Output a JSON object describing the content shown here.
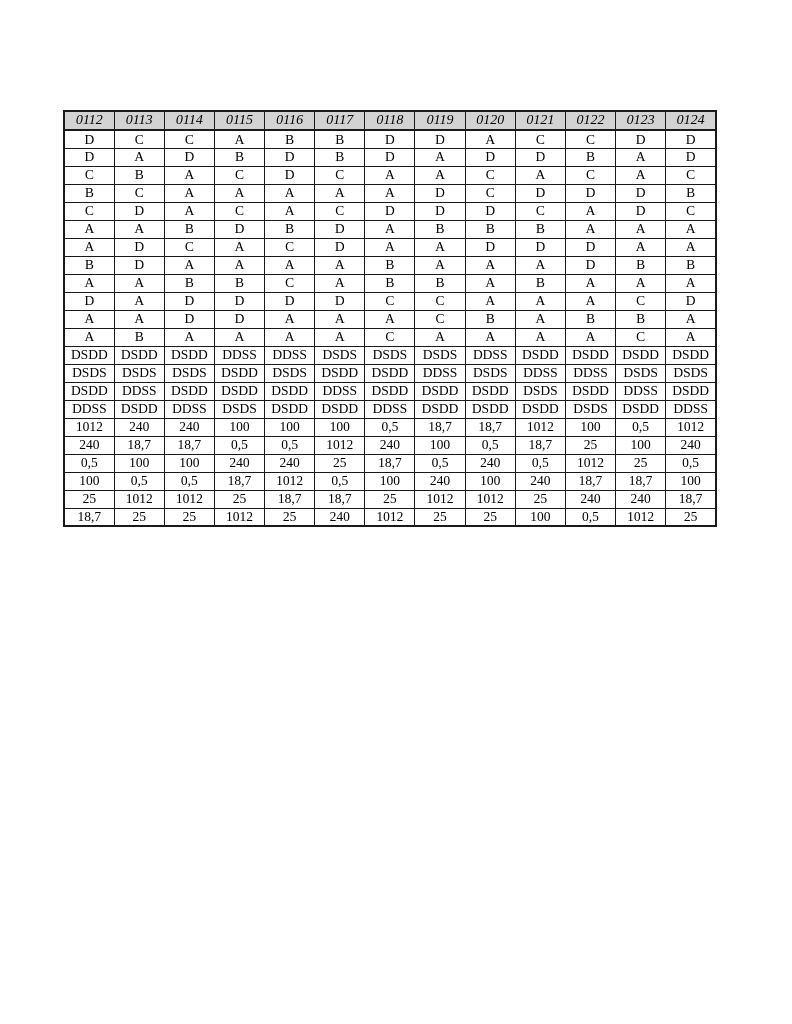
{
  "page": {
    "background": "#ffffff"
  },
  "table": {
    "border_color": "#1a1a1a",
    "header_bg": "#d3d3d3",
    "columns": [
      "0112",
      "0113",
      "0114",
      "0115",
      "0116",
      "0117",
      "0118",
      "0119",
      "0120",
      "0121",
      "0122",
      "0123",
      "0124"
    ],
    "rows": [
      [
        "D",
        "C",
        "C",
        "A",
        "B",
        "B",
        "D",
        "D",
        "A",
        "C",
        "C",
        "D",
        "D"
      ],
      [
        "D",
        "A",
        "D",
        "B",
        "D",
        "B",
        "D",
        "A",
        "D",
        "D",
        "B",
        "A",
        "D"
      ],
      [
        "C",
        "B",
        "A",
        "C",
        "D",
        "C",
        "A",
        "A",
        "C",
        "A",
        "C",
        "A",
        "C"
      ],
      [
        "B",
        "C",
        "A",
        "A",
        "A",
        "A",
        "A",
        "D",
        "C",
        "D",
        "D",
        "D",
        "B"
      ],
      [
        "C",
        "D",
        "A",
        "C",
        "A",
        "C",
        "D",
        "D",
        "D",
        "C",
        "A",
        "D",
        "C"
      ],
      [
        "A",
        "A",
        "B",
        "D",
        "B",
        "D",
        "A",
        "B",
        "B",
        "B",
        "A",
        "A",
        "A"
      ],
      [
        "A",
        "D",
        "C",
        "A",
        "C",
        "D",
        "A",
        "A",
        "D",
        "D",
        "D",
        "A",
        "A"
      ],
      [
        "B",
        "D",
        "A",
        "A",
        "A",
        "A",
        "B",
        "A",
        "A",
        "A",
        "D",
        "B",
        "B"
      ],
      [
        "A",
        "A",
        "B",
        "B",
        "C",
        "A",
        "B",
        "B",
        "A",
        "B",
        "A",
        "A",
        "A"
      ],
      [
        "D",
        "A",
        "D",
        "D",
        "D",
        "D",
        "C",
        "C",
        "A",
        "A",
        "A",
        "C",
        "D"
      ],
      [
        "A",
        "A",
        "D",
        "D",
        "A",
        "A",
        "A",
        "C",
        "B",
        "A",
        "B",
        "B",
        "A"
      ],
      [
        "A",
        "B",
        "A",
        "A",
        "A",
        "A",
        "C",
        "A",
        "A",
        "A",
        "A",
        "C",
        "A"
      ],
      [
        "DSDD",
        "DSDD",
        "DSDD",
        "DDSS",
        "DDSS",
        "DSDS",
        "DSDS",
        "DSDS",
        "DDSS",
        "DSDD",
        "DSDD",
        "DSDD",
        "DSDD"
      ],
      [
        "DSDS",
        "DSDS",
        "DSDS",
        "DSDD",
        "DSDS",
        "DSDD",
        "DSDD",
        "DDSS",
        "DSDS",
        "DDSS",
        "DDSS",
        "DSDS",
        "DSDS"
      ],
      [
        "DSDD",
        "DDSS",
        "DSDD",
        "DSDD",
        "DSDD",
        "DDSS",
        "DSDD",
        "DSDD",
        "DSDD",
        "DSDS",
        "DSDD",
        "DDSS",
        "DSDD"
      ],
      [
        "DDSS",
        "DSDD",
        "DDSS",
        "DSDS",
        "DSDD",
        "DSDD",
        "DDSS",
        "DSDD",
        "DSDD",
        "DSDD",
        "DSDS",
        "DSDD",
        "DDSS"
      ],
      [
        "1012",
        "240",
        "240",
        "100",
        "100",
        "100",
        "0,5",
        "18,7",
        "18,7",
        "1012",
        "100",
        "0,5",
        "1012"
      ],
      [
        "240",
        "18,7",
        "18,7",
        "0,5",
        "0,5",
        "1012",
        "240",
        "100",
        "0,5",
        "18,7",
        "25",
        "100",
        "240"
      ],
      [
        "0,5",
        "100",
        "100",
        "240",
        "240",
        "25",
        "18,7",
        "0,5",
        "240",
        "0,5",
        "1012",
        "25",
        "0,5"
      ],
      [
        "100",
        "0,5",
        "0,5",
        "18,7",
        "1012",
        "0,5",
        "100",
        "240",
        "100",
        "240",
        "18,7",
        "18,7",
        "100"
      ],
      [
        "25",
        "1012",
        "1012",
        "25",
        "18,7",
        "18,7",
        "25",
        "1012",
        "1012",
        "25",
        "240",
        "240",
        "18,7"
      ],
      [
        "18,7",
        "25",
        "25",
        "1012",
        "25",
        "240",
        "1012",
        "25",
        "25",
        "100",
        "0,5",
        "1012",
        "25"
      ]
    ]
  }
}
